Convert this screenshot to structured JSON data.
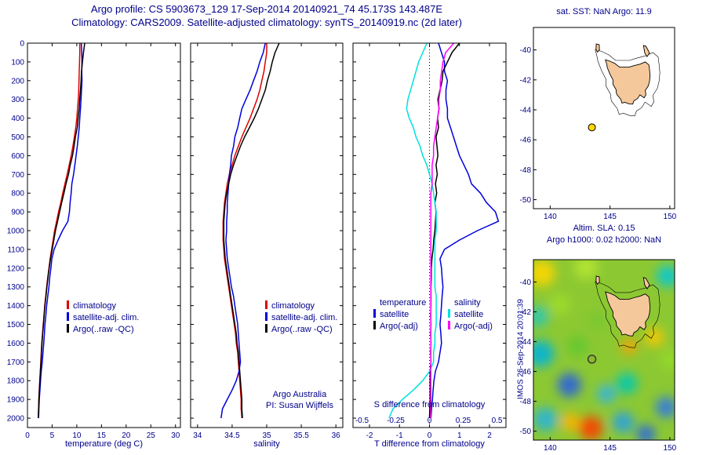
{
  "title": {
    "line1": "Argo profile: CS 5903673_129 17-Sep-2014 20140921_74 45.173S 143.487E",
    "line2": "Climatology: CARS2009. Satellite-adjusted climatology: synTS_20140919.nc (2d later)"
  },
  "colors": {
    "text": "#00008B",
    "axis": "#000000",
    "climatology": "#e00000",
    "satellite_adjusted": "#0000dd",
    "argo": "#000000",
    "salinity_satellite": "#00e0e0",
    "salinity_argo": "#ff00ff",
    "land": "#f5c89b",
    "sst_marker": "#ffd700",
    "sla_base": "#8cc832"
  },
  "chart_data": [
    {
      "id": "temperature-profile",
      "type": "line",
      "xlabel": "temperature (deg C)",
      "xlim": [
        0,
        31
      ],
      "ylim": [
        0,
        2050
      ],
      "xticks": [
        0,
        5,
        10,
        15,
        20,
        25,
        30
      ],
      "yticks": [
        0,
        100,
        200,
        300,
        400,
        500,
        600,
        700,
        800,
        900,
        1000,
        1100,
        1200,
        1300,
        1400,
        1500,
        1600,
        1700,
        1800,
        1900,
        2000
      ],
      "depths": [
        0,
        50,
        100,
        150,
        200,
        250,
        300,
        350,
        400,
        450,
        500,
        550,
        600,
        650,
        700,
        750,
        800,
        850,
        900,
        950,
        1000,
        1050,
        1100,
        1150,
        1200,
        1250,
        1300,
        1350,
        1400,
        1450,
        1500,
        1550,
        1600,
        1650,
        1700,
        1750,
        1800,
        1850,
        1900,
        1950,
        2000
      ],
      "series": [
        {
          "name": "climatology",
          "color": "#e00000",
          "values": [
            10.6,
            10.6,
            10.55,
            10.5,
            10.45,
            10.4,
            10.3,
            10.15,
            10.0,
            9.8,
            9.5,
            9.2,
            8.85,
            8.45,
            8.05,
            7.6,
            7.15,
            6.75,
            6.3,
            5.9,
            5.5,
            5.2,
            4.9,
            4.6,
            4.35,
            4.1,
            3.9,
            3.7,
            3.5,
            3.35,
            3.2,
            3.05,
            2.9,
            2.8,
            2.7,
            2.6,
            2.5,
            2.4,
            2.3,
            2.25,
            2.2
          ]
        },
        {
          "name": "satellite-adj. clim.",
          "color": "#0000dd",
          "values": [
            10.9,
            11.0,
            11.05,
            11.0,
            11.05,
            10.95,
            10.85,
            10.75,
            10.6,
            10.5,
            10.3,
            10.1,
            9.85,
            9.6,
            9.35,
            9.0,
            8.85,
            8.65,
            8.5,
            8.2,
            7.1,
            6.2,
            5.4,
            4.95,
            4.75,
            4.52,
            4.35,
            4.12,
            3.9,
            3.73,
            3.55,
            3.43,
            3.3,
            3.15,
            3.0,
            2.8,
            2.65,
            2.52,
            2.4,
            2.32,
            2.25
          ]
        },
        {
          "name": "Argo(..raw -QC)",
          "color": "#000000",
          "values": [
            11.6,
            11.35,
            11.15,
            10.95,
            10.87,
            10.75,
            10.58,
            10.47,
            10.27,
            10.1,
            9.72,
            9.45,
            9.13,
            8.67,
            8.31,
            7.8,
            7.39,
            6.93,
            6.52,
            6.1,
            5.68,
            5.34,
            5.02,
            4.68,
            4.41,
            4.16,
            3.95,
            3.75,
            3.55,
            3.39,
            3.25,
            3.09,
            2.95,
            2.84,
            2.75,
            2.62,
            2.52,
            2.42,
            2.32,
            2.26,
            2.2
          ]
        }
      ]
    },
    {
      "id": "salinity-profile",
      "type": "line",
      "xlabel": "salinity",
      "xlim": [
        33.9,
        36.1
      ],
      "ylim": [
        0,
        2050
      ],
      "xticks": [
        34,
        34.5,
        35,
        35.5,
        36
      ],
      "yticks": [
        0,
        100,
        200,
        300,
        400,
        500,
        600,
        700,
        800,
        900,
        1000,
        1100,
        1200,
        1300,
        1400,
        1500,
        1600,
        1700,
        1800,
        1900,
        2000
      ],
      "annotation": [
        "Argo Australia",
        "PI: Susan Wijffels"
      ],
      "depths": [
        0,
        50,
        100,
        150,
        200,
        250,
        300,
        350,
        400,
        450,
        500,
        550,
        600,
        650,
        700,
        750,
        800,
        850,
        900,
        950,
        1000,
        1050,
        1100,
        1150,
        1200,
        1250,
        1300,
        1350,
        1400,
        1450,
        1500,
        1550,
        1600,
        1650,
        1700,
        1750,
        1800,
        1850,
        1900,
        1950,
        2000
      ],
      "series": [
        {
          "name": "climatology",
          "color": "#e00000",
          "values": [
            35.0,
            35.0,
            34.98,
            34.96,
            34.93,
            34.9,
            34.86,
            34.81,
            34.76,
            34.7,
            34.64,
            34.59,
            34.54,
            34.5,
            34.46,
            34.43,
            34.41,
            34.39,
            34.38,
            34.37,
            34.37,
            34.37,
            34.38,
            34.39,
            34.41,
            34.43,
            34.45,
            34.47,
            34.49,
            34.51,
            34.53,
            34.55,
            34.56,
            34.58,
            34.59,
            34.6,
            34.61,
            34.62,
            34.63,
            34.63,
            34.64
          ]
        },
        {
          "name": "satellite-adj. clim.",
          "color": "#0000dd",
          "values": [
            34.98,
            34.95,
            34.9,
            34.86,
            34.81,
            34.76,
            34.7,
            34.64,
            34.61,
            34.58,
            34.54,
            34.52,
            34.49,
            34.48,
            34.46,
            34.45,
            34.44,
            34.43,
            34.43,
            34.42,
            34.42,
            34.41,
            34.42,
            34.43,
            34.45,
            34.47,
            34.49,
            34.52,
            34.54,
            34.56,
            34.58,
            34.59,
            34.6,
            34.61,
            34.62,
            34.6,
            34.56,
            34.5,
            34.43,
            34.36,
            34.34
          ]
        },
        {
          "name": "Argo(..raw -QC)",
          "color": "#000000",
          "values": [
            35.18,
            35.12,
            35.08,
            35.05,
            35.01,
            34.98,
            34.93,
            34.88,
            34.82,
            34.75,
            34.68,
            34.62,
            34.57,
            34.52,
            34.48,
            34.45,
            34.42,
            34.4,
            34.39,
            34.38,
            34.38,
            34.38,
            34.39,
            34.4,
            34.42,
            34.44,
            34.46,
            34.48,
            34.5,
            34.52,
            34.54,
            34.56,
            34.57,
            34.59,
            34.6,
            34.61,
            34.62,
            34.63,
            34.64,
            34.64,
            34.65
          ]
        }
      ]
    },
    {
      "id": "difference-profile",
      "type": "line",
      "xlabel": "T difference from climatology",
      "xlim": [
        -2.55,
        2.55
      ],
      "ylim": [
        0,
        2050
      ],
      "xticks": [
        -2,
        -1,
        0,
        1,
        2
      ],
      "yticks": [
        0,
        100,
        200,
        300,
        400,
        500,
        600,
        700,
        800,
        900,
        1000,
        1100,
        1200,
        1300,
        1400,
        1500,
        1600,
        1700,
        1800,
        1900,
        2000
      ],
      "s_axis": {
        "label": "S difference from climatology",
        "ticks": [
          -0.5,
          -0.25,
          0,
          0.25,
          0.5
        ],
        "scale": 4.5
      },
      "legend_groups": [
        "temperature",
        "salinity"
      ],
      "depths": [
        0,
        50,
        100,
        150,
        200,
        250,
        300,
        350,
        400,
        450,
        500,
        550,
        600,
        650,
        700,
        750,
        800,
        850,
        900,
        950,
        1000,
        1050,
        1100,
        1150,
        1200,
        1250,
        1300,
        1350,
        1400,
        1450,
        1500,
        1550,
        1600,
        1650,
        1700,
        1750,
        1800,
        1850,
        1900,
        1950,
        2000
      ],
      "series": [
        {
          "name": "satellite",
          "group": "temperature",
          "color": "#0000dd",
          "axis": "T",
          "values": [
            0.3,
            0.4,
            0.5,
            0.5,
            0.6,
            0.55,
            0.55,
            0.6,
            0.6,
            0.7,
            0.8,
            0.9,
            1.0,
            1.15,
            1.3,
            1.4,
            1.7,
            1.9,
            2.2,
            2.3,
            1.6,
            1.0,
            0.5,
            0.35,
            0.4,
            0.42,
            0.45,
            0.42,
            0.4,
            0.38,
            0.35,
            0.38,
            0.4,
            0.35,
            0.3,
            0.2,
            0.15,
            0.12,
            0.1,
            0.07,
            0.05
          ]
        },
        {
          "name": "Argo(-adj)",
          "group": "temperature",
          "color": "#000000",
          "axis": "T",
          "values": [
            1.0,
            0.75,
            0.6,
            0.45,
            0.42,
            0.35,
            0.28,
            0.32,
            0.27,
            0.3,
            0.22,
            0.25,
            0.28,
            0.22,
            0.26,
            0.2,
            0.24,
            0.18,
            0.22,
            0.2,
            0.18,
            0.14,
            0.12,
            0.08,
            0.06,
            0.06,
            0.05,
            0.05,
            0.05,
            0.04,
            0.05,
            0.04,
            0.05,
            0.04,
            0.05,
            0.02,
            0.02,
            0.02,
            0.02,
            0.01,
            0.0
          ]
        },
        {
          "name": "satellite",
          "group": "salinity",
          "color": "#00e0e0",
          "axis": "S",
          "values": [
            -0.02,
            -0.05,
            -0.08,
            -0.1,
            -0.12,
            -0.14,
            -0.16,
            -0.17,
            -0.15,
            -0.12,
            -0.1,
            -0.07,
            -0.05,
            -0.02,
            0.0,
            0.02,
            0.03,
            0.04,
            0.05,
            0.05,
            0.05,
            0.04,
            0.04,
            0.04,
            0.04,
            0.04,
            0.04,
            0.05,
            0.05,
            0.05,
            0.05,
            0.04,
            0.04,
            0.03,
            0.03,
            0.0,
            -0.05,
            -0.12,
            -0.2,
            -0.27,
            -0.3
          ]
        },
        {
          "name": "Argo(-adj)",
          "group": "salinity",
          "color": "#ff00ff",
          "axis": "S",
          "values": [
            0.18,
            0.12,
            0.1,
            0.09,
            0.08,
            0.08,
            0.07,
            0.07,
            0.06,
            0.05,
            0.04,
            0.03,
            0.03,
            0.02,
            0.02,
            0.02,
            0.01,
            0.01,
            0.01,
            0.01,
            0.01,
            0.01,
            0.01,
            0.01,
            0.01,
            0.01,
            0.01,
            0.01,
            0.01,
            0.01,
            0.01,
            0.01,
            0.01,
            0.01,
            0.01,
            0.01,
            0.01,
            0.01,
            0.01,
            0.01,
            0.01
          ]
        }
      ]
    }
  ],
  "maps": {
    "sst": {
      "title": "sat. SST: NaN Argo: 11.9",
      "xticks": [
        140,
        145,
        150
      ],
      "yticks": [
        -40,
        -42,
        -44,
        -46,
        -48,
        -50
      ],
      "xlim": [
        138.6,
        150.4
      ],
      "ylim": [
        -38.5,
        -50.6
      ],
      "marker": {
        "lon": 143.487,
        "lat": -45.173,
        "color": "#ffd700"
      }
    },
    "sla": {
      "title_line1": "Altim. SLA: 0.15",
      "title_line2": "Argo h1000: 0.02 h2000: NaN",
      "vertical_label": "IMOS 26-Sep-2014 20:01:39",
      "xticks": [
        140,
        145,
        150
      ],
      "yticks": [
        -40,
        -42,
        -44,
        -46,
        -48,
        -50
      ],
      "xlim": [
        138.6,
        150.4
      ],
      "ylim": [
        -38.5,
        -50.6
      ],
      "base_color": "#8cc832",
      "marker": {
        "lon": 143.487,
        "lat": -45.173,
        "color": "#333333"
      },
      "blobs": [
        [
          139.3,
          -39.4,
          1.0,
          "#ffd700"
        ],
        [
          143.0,
          -39.0,
          0.9,
          "#b4e632"
        ],
        [
          149.8,
          -39.6,
          0.8,
          "#00c8dc"
        ],
        [
          139.0,
          -42.3,
          0.8,
          "#2ec8b4"
        ],
        [
          139.2,
          -44.8,
          1.0,
          "#00b4dc"
        ],
        [
          141.6,
          -46.9,
          0.9,
          "#2860e0"
        ],
        [
          139.6,
          -49.2,
          0.9,
          "#28b4dc"
        ],
        [
          141.7,
          -49.4,
          0.7,
          "#ffb400"
        ],
        [
          143.4,
          -49.8,
          0.9,
          "#ff3c00"
        ],
        [
          146.1,
          -49.4,
          0.8,
          "#28a0e6"
        ],
        [
          148.0,
          -50.2,
          0.7,
          "#2864e6"
        ],
        [
          149.7,
          -48.4,
          0.8,
          "#3278e6"
        ],
        [
          144.7,
          -47.5,
          0.7,
          "#32b4e6"
        ],
        [
          146.4,
          -46.8,
          0.8,
          "#00c8b4"
        ],
        [
          146.6,
          -44.3,
          0.6,
          "#ffa000"
        ],
        [
          148.7,
          -43.7,
          0.7,
          "#ffc800"
        ],
        [
          150.0,
          -45.2,
          0.7,
          "#96dc28"
        ],
        [
          142.3,
          -44.3,
          0.8,
          "#64c832"
        ],
        [
          140.8,
          -41.5,
          0.8,
          "#a0dc28"
        ],
        [
          144.0,
          -42.6,
          0.7,
          "#78c832"
        ]
      ]
    }
  },
  "coastline": {
    "tasmania": [
      [
        144.62,
        -40.66
      ],
      [
        144.72,
        -40.95
      ],
      [
        144.78,
        -41.2
      ],
      [
        145.0,
        -41.62
      ],
      [
        145.25,
        -42.0
      ],
      [
        145.25,
        -42.3
      ],
      [
        145.5,
        -42.65
      ],
      [
        145.55,
        -42.95
      ],
      [
        145.9,
        -43.3
      ],
      [
        146.0,
        -43.55
      ],
      [
        146.25,
        -43.5
      ],
      [
        146.6,
        -43.6
      ],
      [
        146.9,
        -43.62
      ],
      [
        147.0,
        -43.4
      ],
      [
        147.3,
        -43.25
      ],
      [
        147.5,
        -43.0
      ],
      [
        147.85,
        -43.2
      ],
      [
        148.0,
        -43.0
      ],
      [
        147.95,
        -42.7
      ],
      [
        148.2,
        -42.4
      ],
      [
        148.3,
        -42.1
      ],
      [
        148.35,
        -41.7
      ],
      [
        148.3,
        -41.3
      ],
      [
        148.25,
        -41.0
      ],
      [
        147.95,
        -40.8
      ],
      [
        147.5,
        -40.95
      ],
      [
        147.0,
        -41.05
      ],
      [
        146.6,
        -41.15
      ],
      [
        146.25,
        -41.15
      ],
      [
        145.8,
        -41.15
      ],
      [
        145.4,
        -40.9
      ],
      [
        145.0,
        -40.75
      ],
      [
        144.62,
        -40.66
      ]
    ],
    "king_island": [
      [
        143.85,
        -39.6
      ],
      [
        144.1,
        -39.65
      ],
      [
        144.12,
        -40.0
      ],
      [
        143.95,
        -40.15
      ],
      [
        143.83,
        -39.95
      ],
      [
        143.85,
        -39.6
      ]
    ],
    "flinders_island": [
      [
        147.8,
        -39.7
      ],
      [
        148.0,
        -39.75
      ],
      [
        148.3,
        -40.2
      ],
      [
        148.1,
        -40.45
      ],
      [
        147.9,
        -40.2
      ],
      [
        147.8,
        -39.7
      ]
    ]
  }
}
